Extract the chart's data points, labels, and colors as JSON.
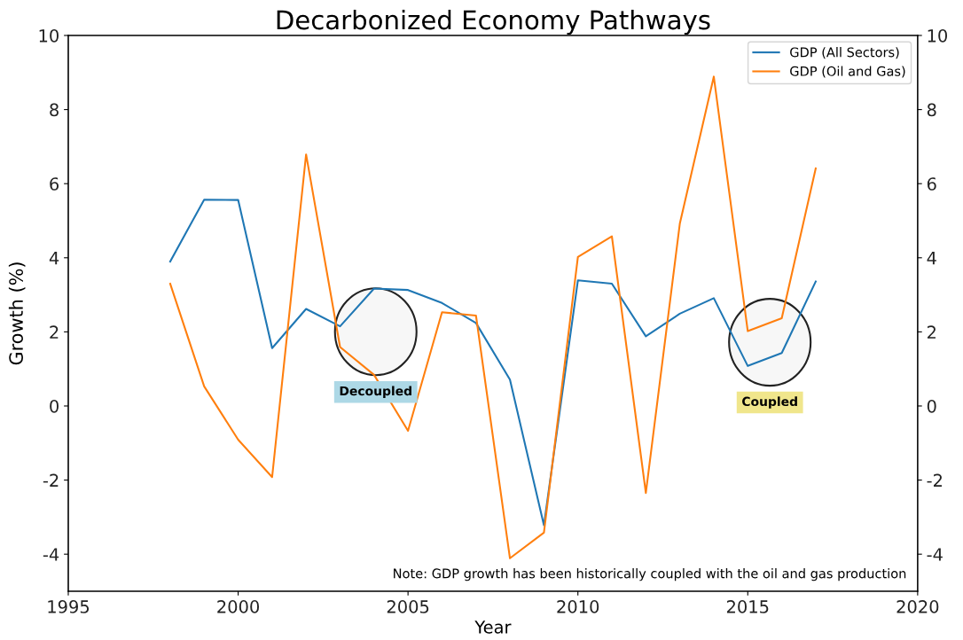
{
  "chart_data": {
    "type": "line",
    "title": "Decarbonized Economy Pathways",
    "xlabel": "Year",
    "ylabel": "Growth (%)",
    "x": [
      1998,
      1999,
      2000,
      2001,
      2002,
      2003,
      2004,
      2005,
      2006,
      2007,
      2008,
      2009,
      2010,
      2011,
      2012,
      2013,
      2014,
      2015,
      2016,
      2017
    ],
    "series": [
      {
        "name": "GDP (All Sectors)",
        "color": "#1f77b4",
        "values": [
          3.9,
          5.57,
          5.56,
          1.56,
          2.62,
          2.15,
          3.17,
          3.13,
          2.78,
          2.24,
          0.71,
          -3.22,
          3.39,
          3.3,
          1.88,
          2.49,
          2.91,
          1.08,
          1.43,
          3.36
        ]
      },
      {
        "name": "GDP (Oil and Gas)",
        "color": "#ff7f0e",
        "values": [
          3.3,
          0.53,
          -0.91,
          -1.92,
          6.79,
          1.59,
          0.84,
          -0.67,
          2.53,
          2.44,
          -4.11,
          -3.42,
          4.02,
          4.58,
          -2.35,
          4.92,
          8.89,
          2.02,
          2.37,
          6.41
        ]
      }
    ],
    "xlim": [
      1995,
      2020
    ],
    "xticks": [
      1995,
      2000,
      2005,
      2010,
      2015,
      2020
    ],
    "ylim": [
      -5,
      10
    ],
    "yticks": [
      -4,
      -2,
      0,
      2,
      4,
      6,
      8,
      10
    ],
    "y2lim": [
      -5,
      10
    ],
    "y2ticks": [
      -4,
      -2,
      0,
      2,
      4,
      6,
      8,
      10
    ],
    "legend": "top right",
    "grid": false,
    "marker": "none",
    "line_style": "solid",
    "annotations": [
      "Decoupled",
      "Coupled",
      "Note: GDP growth has been historically coupled with the oil and gas production"
    ]
  }
}
